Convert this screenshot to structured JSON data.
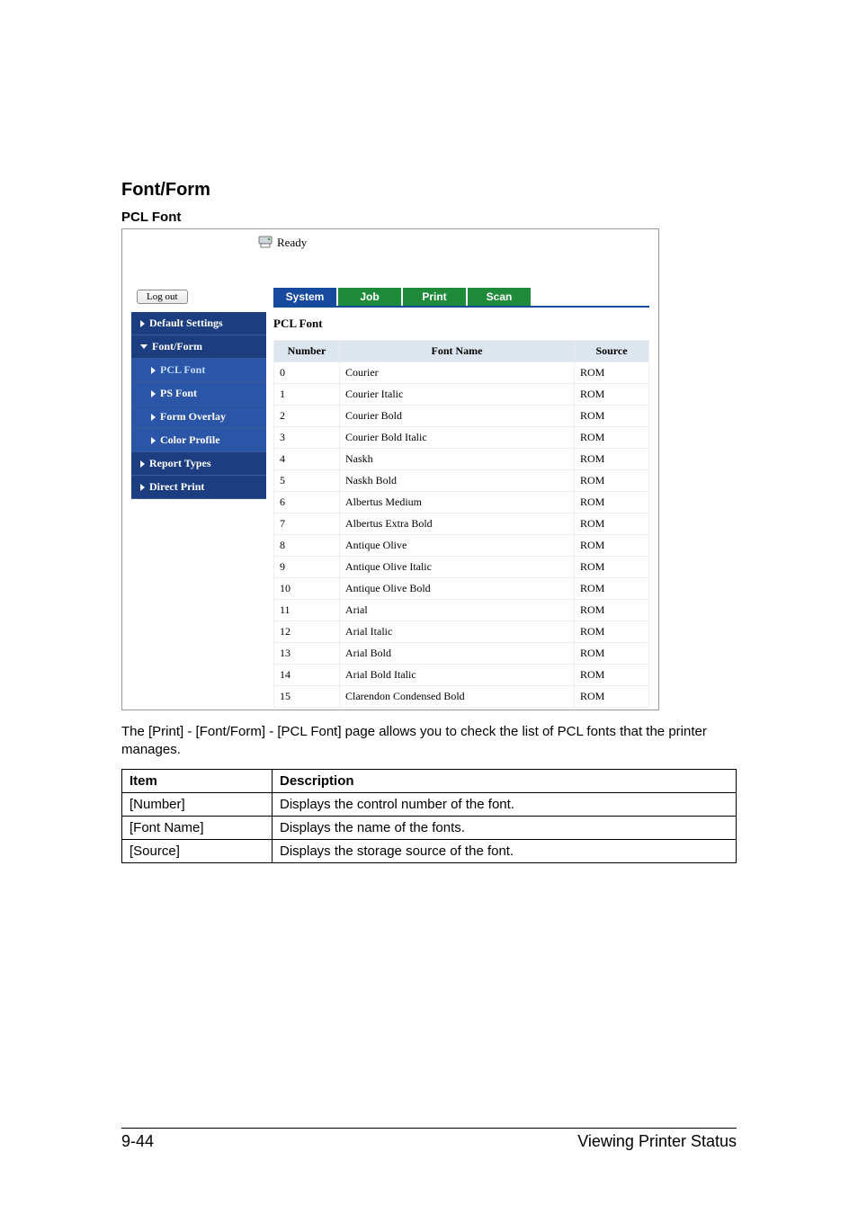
{
  "doc": {
    "section_title": "Font/Form",
    "subsection_title": "PCL Font",
    "caption": "The [Print] - [Font/Form] - [PCL Font] page allows you to check the list of PCL fonts that the printer manages.",
    "page_number": "9-44",
    "footer_text": "Viewing Printer Status"
  },
  "screenshot": {
    "status_text": "Ready",
    "logout_label": "Log out",
    "tabs": {
      "system": "System",
      "job": "Job",
      "print": "Print",
      "scan": "Scan"
    },
    "menu": {
      "default_settings": "Default Settings",
      "font_form": "Font/Form",
      "pcl_font": "PCL Font",
      "ps_font": "PS Font",
      "form_overlay": "Form Overlay",
      "color_profile": "Color Profile",
      "report_types": "Report Types",
      "direct_print": "Direct Print"
    },
    "panel_title": "PCL Font",
    "headers": {
      "number": "Number",
      "font_name": "Font Name",
      "source": "Source"
    },
    "rows": [
      {
        "n": "0",
        "name": "Courier",
        "src": "ROM"
      },
      {
        "n": "1",
        "name": "Courier Italic",
        "src": "ROM"
      },
      {
        "n": "2",
        "name": "Courier Bold",
        "src": "ROM"
      },
      {
        "n": "3",
        "name": "Courier Bold Italic",
        "src": "ROM"
      },
      {
        "n": "4",
        "name": "Naskh",
        "src": "ROM"
      },
      {
        "n": "5",
        "name": "Naskh Bold",
        "src": "ROM"
      },
      {
        "n": "6",
        "name": "Albertus Medium",
        "src": "ROM"
      },
      {
        "n": "7",
        "name": "Albertus Extra Bold",
        "src": "ROM"
      },
      {
        "n": "8",
        "name": "Antique Olive",
        "src": "ROM"
      },
      {
        "n": "9",
        "name": "Antique Olive Italic",
        "src": "ROM"
      },
      {
        "n": "10",
        "name": "Antique Olive Bold",
        "src": "ROM"
      },
      {
        "n": "11",
        "name": "Arial",
        "src": "ROM"
      },
      {
        "n": "12",
        "name": "Arial Italic",
        "src": "ROM"
      },
      {
        "n": "13",
        "name": "Arial Bold",
        "src": "ROM"
      },
      {
        "n": "14",
        "name": "Arial Bold Italic",
        "src": "ROM"
      },
      {
        "n": "15",
        "name": "Clarendon Condensed Bold",
        "src": "ROM"
      }
    ]
  },
  "desc_table": {
    "header_item": "Item",
    "header_desc": "Description",
    "rows": [
      {
        "item": "[Number]",
        "desc": "Displays the control number of the font."
      },
      {
        "item": "[Font Name]",
        "desc": "Displays the name of the fonts."
      },
      {
        "item": "[Source]",
        "desc": "Displays the storage source of the font."
      }
    ]
  },
  "colors": {
    "menu_dark": "#1c3e80",
    "menu_light": "#2b55a6",
    "tab_blue": "#174a9e",
    "tab_green": "#1e8a3a",
    "th_bg": "#dde5ef"
  }
}
